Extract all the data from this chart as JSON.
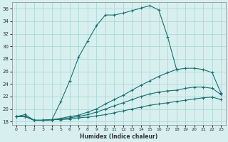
{
  "title": "",
  "xlabel": "Humidex (Indice chaleur)",
  "ylabel": "",
  "bg_color": "#d7efef",
  "grid_color": "#afd8d8",
  "line_color": "#1a7070",
  "xlim": [
    -0.5,
    23.5
  ],
  "ylim": [
    17.5,
    37.0
  ],
  "xticks": [
    0,
    1,
    2,
    3,
    4,
    5,
    6,
    7,
    8,
    9,
    10,
    11,
    12,
    13,
    14,
    15,
    16,
    17,
    18,
    19,
    20,
    21,
    22,
    23
  ],
  "yticks": [
    18,
    20,
    22,
    24,
    26,
    28,
    30,
    32,
    34,
    36
  ],
  "curves": [
    {
      "x": [
        0,
        1,
        2,
        3,
        4,
        5,
        6,
        7,
        8,
        9,
        10,
        11,
        12,
        13,
        14,
        15,
        16,
        17,
        18
      ],
      "y": [
        18.8,
        19.1,
        18.2,
        18.2,
        18.3,
        21.2,
        24.5,
        28.3,
        30.8,
        33.3,
        35.0,
        35.0,
        35.3,
        35.7,
        36.1,
        36.5,
        35.8,
        31.5,
        26.3
      ]
    },
    {
      "x": [
        0,
        1,
        2,
        3,
        4,
        5,
        6,
        7,
        8,
        9,
        10,
        11,
        12,
        13,
        14,
        15,
        16,
        17,
        18,
        19,
        20,
        21,
        22,
        23
      ],
      "y": [
        18.8,
        18.8,
        18.2,
        18.2,
        18.3,
        18.5,
        18.8,
        19.0,
        19.5,
        20.0,
        20.8,
        21.5,
        22.2,
        23.0,
        23.8,
        24.5,
        25.2,
        25.8,
        26.3,
        26.5,
        26.5,
        26.3,
        25.8,
        22.5
      ]
    },
    {
      "x": [
        0,
        1,
        2,
        3,
        4,
        5,
        6,
        7,
        8,
        9,
        10,
        11,
        12,
        13,
        14,
        15,
        16,
        17,
        18,
        19,
        20,
        21,
        22,
        23
      ],
      "y": [
        18.8,
        18.8,
        18.2,
        18.2,
        18.3,
        18.4,
        18.6,
        18.8,
        19.1,
        19.5,
        20.0,
        20.5,
        21.0,
        21.5,
        22.0,
        22.4,
        22.7,
        22.9,
        23.0,
        23.3,
        23.5,
        23.5,
        23.3,
        22.3
      ]
    },
    {
      "x": [
        0,
        1,
        2,
        3,
        4,
        5,
        6,
        7,
        8,
        9,
        10,
        11,
        12,
        13,
        14,
        15,
        16,
        17,
        18,
        19,
        20,
        21,
        22,
        23
      ],
      "y": [
        18.8,
        18.8,
        18.2,
        18.2,
        18.3,
        18.3,
        18.4,
        18.6,
        18.7,
        18.9,
        19.1,
        19.4,
        19.7,
        20.0,
        20.3,
        20.6,
        20.8,
        21.0,
        21.2,
        21.4,
        21.6,
        21.8,
        21.9,
        21.5
      ]
    }
  ]
}
